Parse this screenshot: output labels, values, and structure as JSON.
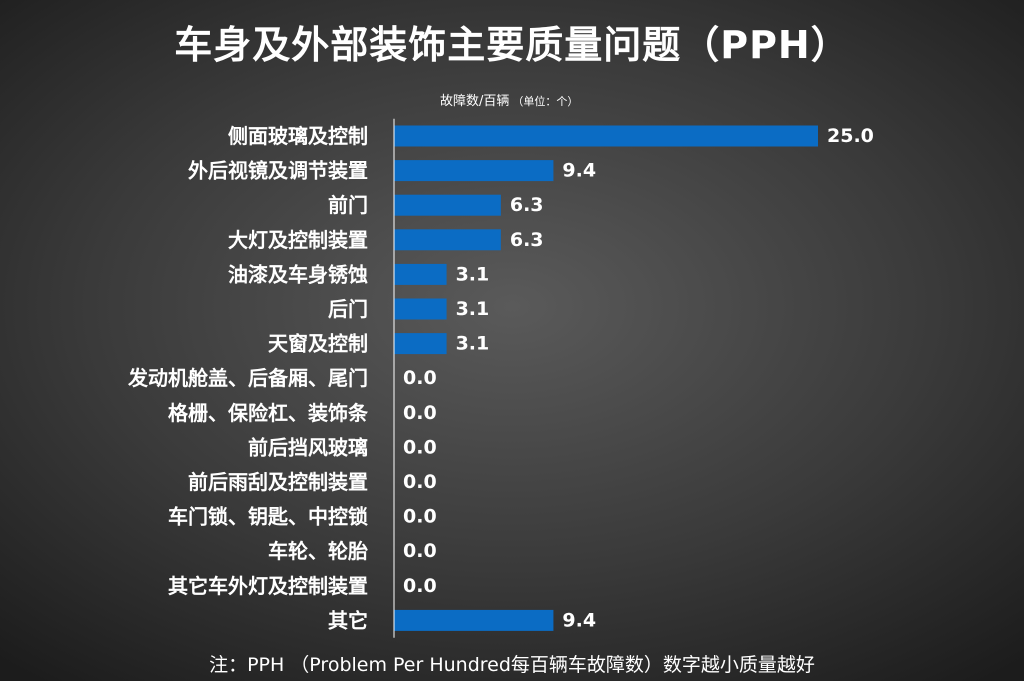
{
  "chart_data": {
    "type": "bar",
    "orientation": "horizontal",
    "title": "车身及外部装饰主要质量问题（PPH）",
    "subtitle_main": "故障数/百辆",
    "subtitle_unit": "（单位：个）",
    "categories": [
      "侧面玻璃及控制",
      "外后视镜及调节装置",
      "前门",
      "大灯及控制装置",
      "油漆及车身锈蚀",
      "后门",
      "天窗及控制",
      "发动机舱盖、后备厢、尾门",
      "格栅、保险杠、装饰条",
      "前后挡风玻璃",
      "前后雨刮及控制装置",
      "车门锁、钥匙、中控锁",
      "车轮、轮胎",
      "其它车外灯及控制装置",
      "其它"
    ],
    "values": [
      25.0,
      9.4,
      6.3,
      6.3,
      3.1,
      3.1,
      3.1,
      0.0,
      0.0,
      0.0,
      0.0,
      0.0,
      0.0,
      0.0,
      9.4
    ],
    "value_labels": [
      "25.0",
      "9.4",
      "6.3",
      "6.3",
      "3.1",
      "3.1",
      "3.1",
      "0.0",
      "0.0",
      "0.0",
      "0.0",
      "0.0",
      "0.0",
      "0.0",
      "9.4"
    ],
    "xlim": [
      0,
      25
    ],
    "bar_color": "#0b6cc4",
    "grid": false,
    "note": "注：PPH （Problem Per Hundred每百辆车故障数）数字越小质量越好"
  },
  "colors": {
    "text": "#ffffff",
    "bar": "#0b6cc4",
    "axis": "#ffffff"
  }
}
